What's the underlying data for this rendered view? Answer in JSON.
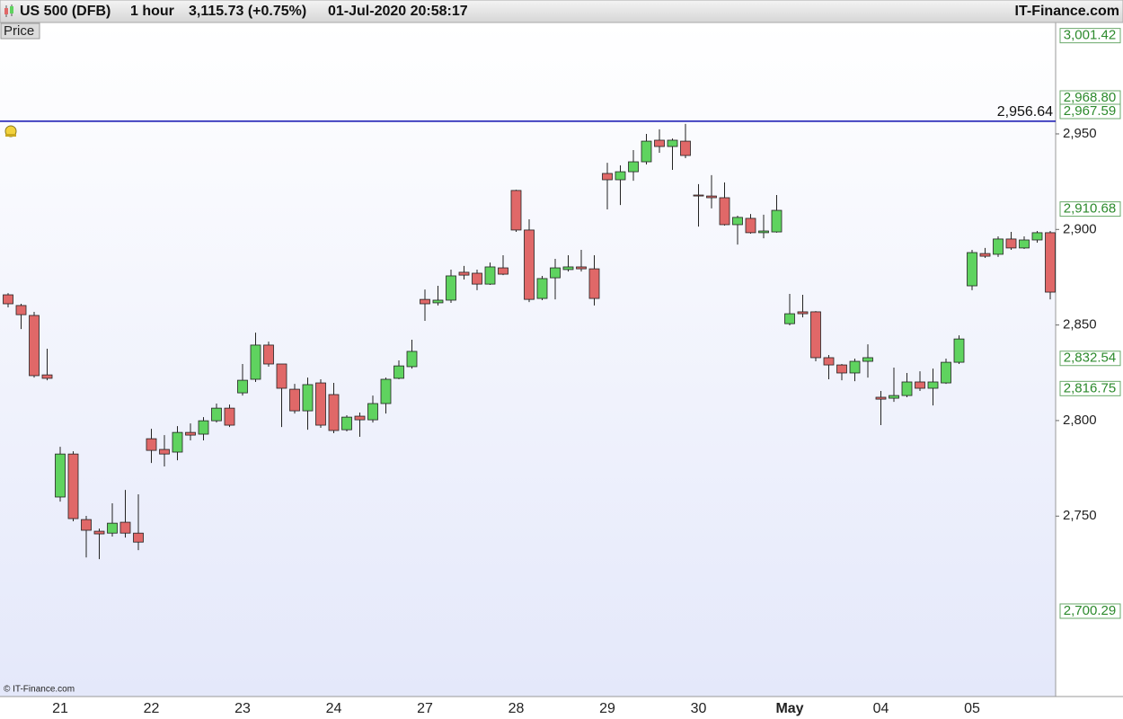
{
  "chart_data": {
    "type": "candlestick",
    "title": "US 500 (DFB)",
    "interval": "1 hour",
    "last_price": "3,115.73 (+0.75%)",
    "timestamp": "01-Jul-2020 20:58:17",
    "source": "IT-Finance.com",
    "panel_label": "Price",
    "copyright": "© IT-Finance.com",
    "categories": [
      null,
      null,
      null,
      null,
      "21",
      null,
      null,
      null,
      null,
      null,
      null,
      "22",
      null,
      null,
      null,
      null,
      null,
      null,
      "23",
      null,
      null,
      null,
      null,
      null,
      null,
      "24",
      null,
      null,
      null,
      null,
      null,
      null,
      "27",
      null,
      null,
      null,
      null,
      null,
      null,
      "28",
      null,
      null,
      null,
      null,
      null,
      null,
      "29",
      null,
      null,
      null,
      null,
      null,
      null,
      "30",
      null,
      null,
      null,
      null,
      null,
      null,
      "May",
      null,
      null,
      null,
      null,
      null,
      null,
      "04",
      null,
      null,
      null,
      null,
      null,
      null,
      "05",
      null,
      null,
      null,
      null,
      null,
      null
    ],
    "open": [
      2865.8,
      2860.2,
      2855.0,
      2823.9,
      2760.0,
      2782.5,
      2748.2,
      2742.1,
      2741.1,
      2746.8,
      2741.1,
      2790.5,
      2784.9,
      2783.5,
      2793.8,
      2792.9,
      2799.9,
      2806.5,
      2814.5,
      2821.6,
      2839.5,
      2829.6,
      2816.4,
      2805.1,
      2819.7,
      2813.6,
      2795.2,
      2802.3,
      2800.4,
      2808.9,
      2822.1,
      2828.2,
      2863.4,
      2861.6,
      2863.0,
      2877.6,
      2877.1,
      2871.4,
      2879.9,
      2920.4,
      2899.7,
      2863.9,
      2874.7,
      2879.0,
      2880.4,
      2879.4,
      2929.3,
      2926.0,
      2930.2,
      2935.4,
      2946.7,
      2943.4,
      2946.2,
      2918.0,
      2917.5,
      2916.6,
      2902.5,
      2905.8,
      2898.3,
      2898.7,
      2850.7,
      2856.9,
      2856.9,
      2832.9,
      2829.1,
      2824.9,
      2831.0,
      2812.2,
      2811.7,
      2813.1,
      2820.2,
      2816.9,
      2819.7,
      2830.5,
      2870.5,
      2887.4,
      2887.0,
      2895.0,
      2890.3,
      2894.5,
      2898.3
    ],
    "high": [
      2866.7,
      2861.1,
      2856.9,
      2837.6,
      2786.3,
      2783.9,
      2750.1,
      2743.5,
      2756.7,
      2763.7,
      2761.4,
      2795.7,
      2792.4,
      2797.1,
      2798.5,
      2801.8,
      2808.9,
      2808.4,
      2829.6,
      2846.0,
      2841.3,
      2829.6,
      2819.2,
      2822.5,
      2821.6,
      2819.7,
      2802.8,
      2804.2,
      2813.1,
      2822.5,
      2831.5,
      2842.3,
      2868.6,
      2870.5,
      2879.0,
      2880.9,
      2879.0,
      2882.7,
      2886.5,
      2920.8,
      2905.3,
      2875.7,
      2884.6,
      2886.5,
      2889.3,
      2886.5,
      2934.9,
      2933.5,
      2941.5,
      2950.0,
      2952.4,
      2947.6,
      2955.2,
      2923.7,
      2928.4,
      2924.6,
      2907.2,
      2908.1,
      2907.7,
      2918.0,
      2866.3,
      2865.8,
      2857.3,
      2834.3,
      2829.6,
      2832.4,
      2839.9,
      2815.5,
      2827.7,
      2824.9,
      2825.8,
      2827.2,
      2832.4,
      2844.6,
      2889.3,
      2890.3,
      2896.4,
      2898.7,
      2896.4,
      2899.2,
      2899.2
    ],
    "low": [
      2859.2,
      2847.9,
      2822.5,
      2821.1,
      2757.6,
      2747.3,
      2728.4,
      2727.5,
      2739.3,
      2738.8,
      2732.2,
      2777.8,
      2776.0,
      2779.2,
      2789.6,
      2789.6,
      2799.0,
      2796.6,
      2813.1,
      2820.2,
      2828.2,
      2796.6,
      2803.7,
      2795.2,
      2796.2,
      2793.4,
      2794.3,
      2791.5,
      2799.0,
      2803.7,
      2821.6,
      2827.2,
      2852.2,
      2860.2,
      2861.6,
      2873.8,
      2868.2,
      2871.0,
      2876.1,
      2898.7,
      2862.0,
      2863.0,
      2863.4,
      2878.0,
      2878.0,
      2860.2,
      2910.5,
      2912.8,
      2925.5,
      2934.0,
      2940.1,
      2931.2,
      2937.3,
      2901.5,
      2911.0,
      2902.0,
      2892.1,
      2897.8,
      2895.4,
      2898.3,
      2849.8,
      2854.0,
      2831.0,
      2821.6,
      2821.1,
      2820.6,
      2822.5,
      2797.6,
      2809.8,
      2812.2,
      2815.5,
      2807.9,
      2819.2,
      2829.6,
      2868.2,
      2885.1,
      2885.6,
      2889.3,
      2889.8,
      2893.1,
      2863.4
    ],
    "close": [
      2861.1,
      2855.4,
      2823.5,
      2822.1,
      2782.5,
      2748.7,
      2742.6,
      2740.7,
      2746.3,
      2741.1,
      2736.4,
      2784.4,
      2782.5,
      2793.8,
      2792.4,
      2799.9,
      2806.5,
      2797.6,
      2821.1,
      2839.5,
      2829.6,
      2816.9,
      2805.1,
      2818.8,
      2797.6,
      2794.8,
      2801.8,
      2800.4,
      2808.9,
      2821.6,
      2828.6,
      2836.2,
      2861.1,
      2863.0,
      2875.7,
      2876.1,
      2871.4,
      2880.4,
      2876.6,
      2899.7,
      2863.4,
      2874.3,
      2879.9,
      2880.4,
      2879.4,
      2863.9,
      2926.0,
      2930.2,
      2935.4,
      2946.2,
      2943.4,
      2946.7,
      2938.7,
      2917.5,
      2916.6,
      2902.5,
      2906.3,
      2898.3,
      2899.2,
      2910.0,
      2855.9,
      2855.9,
      2832.9,
      2829.1,
      2824.9,
      2831.0,
      2832.9,
      2811.2,
      2813.1,
      2820.2,
      2816.9,
      2820.2,
      2830.5,
      2842.7,
      2887.9,
      2886.0,
      2895.0,
      2890.3,
      2894.5,
      2898.3,
      2867.2
    ],
    "up_color": "#5fd35f",
    "down_color": "#e06868",
    "ylim": [
      2655.6,
      3008.3
    ],
    "yticks": [
      {
        "value": 2750,
        "label": "2,750"
      },
      {
        "value": 2800,
        "label": "2,800"
      },
      {
        "value": 2850,
        "label": "2,850"
      },
      {
        "value": 2900,
        "label": "2,900"
      },
      {
        "value": 2950,
        "label": "2,950"
      }
    ],
    "reference_line": {
      "value": 2956.64,
      "label": "2,956.64",
      "color": "#1010b0"
    },
    "price_markers": [
      {
        "value": 3001.42,
        "label": "3,001.42"
      },
      {
        "value": 2968.8,
        "label": "2,968.80"
      },
      {
        "value": 2967.59,
        "label": "2,967.59"
      },
      {
        "value": 2910.68,
        "label": "2,910.68"
      },
      {
        "value": 2832.54,
        "label": "2,832.54"
      },
      {
        "value": 2816.75,
        "label": "2,816.75"
      },
      {
        "value": 2700.29,
        "label": "2,700.29"
      }
    ]
  }
}
